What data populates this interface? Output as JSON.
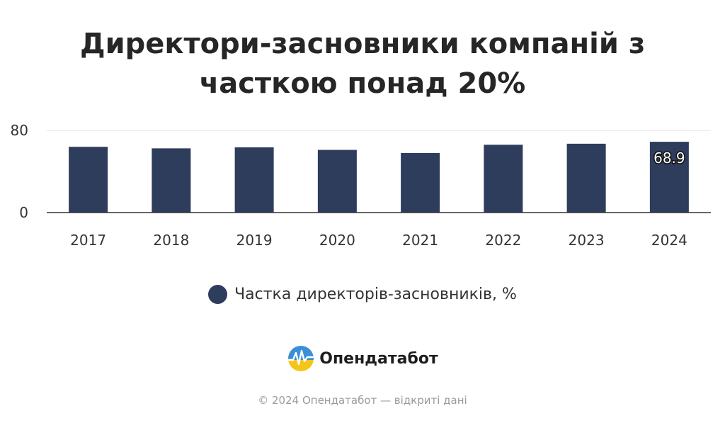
{
  "chart_data": {
    "type": "bar",
    "title_lines": [
      "Директори-засновники компаній з",
      "часткою понад 20%"
    ],
    "categories": [
      "2017",
      "2018",
      "2019",
      "2020",
      "2021",
      "2022",
      "2023",
      "2024"
    ],
    "series": [
      {
        "name": "Частка директорів-засновників, %",
        "values": [
          64,
          62.5,
          63.5,
          61,
          58,
          66,
          67,
          68.9
        ],
        "color": "#2e3d5c"
      }
    ],
    "data_labels": [
      null,
      null,
      null,
      null,
      null,
      null,
      null,
      "68.9"
    ],
    "ylim": [
      0,
      80
    ],
    "yticks": [
      "0",
      "80"
    ],
    "grid": true,
    "legend_position": "bottom"
  },
  "brand": {
    "name": "Опендатабот",
    "icon": "opendatabot-logo-icon"
  },
  "footer": "© 2024 Опендатабот — відкриті дані"
}
